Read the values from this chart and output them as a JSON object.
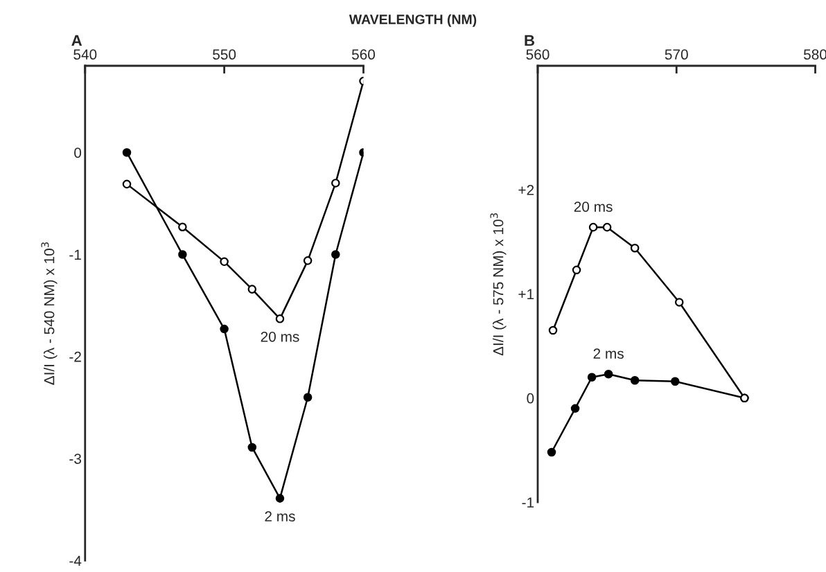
{
  "chart_data": [
    {
      "type": "line",
      "title": "A",
      "xlabel": "WAVELENGTH (NM)",
      "ylabel": "ΔI/I (λ - 540 NM) x 10$^{3}$",
      "xlim": [
        540,
        560
      ],
      "xticks": [
        540,
        550,
        560
      ],
      "ylim": [
        -4,
        0.85
      ],
      "yticks": [
        -4,
        -3,
        -2,
        -1,
        0
      ],
      "marker": "circle",
      "grid": false,
      "legend": false,
      "series": [
        {
          "color": "#000000",
          "x": [
            543,
            547,
            550,
            552,
            554,
            556,
            558,
            560
          ],
          "values": [
            0,
            -1.0,
            -1.73,
            -2.89,
            -3.39,
            -2.4,
            -1.0,
            0
          ]
        },
        {
          "color": "#000000",
          "colors": [
            "#ffffff",
            "#ffffff",
            "#ffffff",
            "#ffffff",
            "#ffffff",
            "#ffffff",
            "#ffffff",
            "#ffffff"
          ],
          "x": [
            543,
            547,
            550,
            552,
            554,
            556,
            558,
            560
          ],
          "values": [
            -0.31,
            -0.73,
            -1.07,
            -1.34,
            -1.63,
            -1.06,
            -0.3,
            0.7
          ]
        }
      ],
      "annotations": [
        {
          "text": "20 ms",
          "x": 554,
          "y": -1.63
        },
        {
          "text": "2 ms",
          "x": 554,
          "y": -3.39
        }
      ]
    },
    {
      "type": "line",
      "title": "B",
      "ylabel": "ΔI/I (λ - 575 NM) x 10$^{3}$",
      "xlim": [
        560,
        580
      ],
      "xticks": [
        560,
        570,
        580
      ],
      "ylim": [
        -1,
        3.19
      ],
      "yticks": [
        {
          "value": -1,
          "label": "-1"
        },
        {
          "value": 0,
          "label": "0"
        },
        {
          "value": 1,
          "label": "+1"
        },
        {
          "value": 2,
          "label": "+2"
        }
      ],
      "marker": "circle",
      "grid": false,
      "legend": false,
      "series": [
        {
          "color": "#000000",
          "x": [
            561.0,
            562.7,
            563.9,
            565.1,
            567.0,
            569.9,
            574.9
          ],
          "values": [
            -0.52,
            -0.1,
            0.2,
            0.23,
            0.17,
            0.16,
            0
          ]
        },
        {
          "color": "#000000",
          "colors": [
            "#ffffff",
            "#ffffff",
            "#ffffff",
            "#ffffff",
            "#ffffff",
            "#ffffff",
            "#ffffff"
          ],
          "x": [
            561.1,
            562.8,
            564.0,
            565.0,
            567.0,
            570.2,
            574.9
          ],
          "values": [
            0.65,
            1.23,
            1.64,
            1.64,
            1.44,
            0.92,
            0
          ]
        }
      ],
      "annotations": [
        {
          "text": "20 ms",
          "x": 564.0,
          "y": 1.64
        },
        {
          "text": "2 ms",
          "x": 565.1,
          "y": 0.23
        }
      ]
    }
  ]
}
